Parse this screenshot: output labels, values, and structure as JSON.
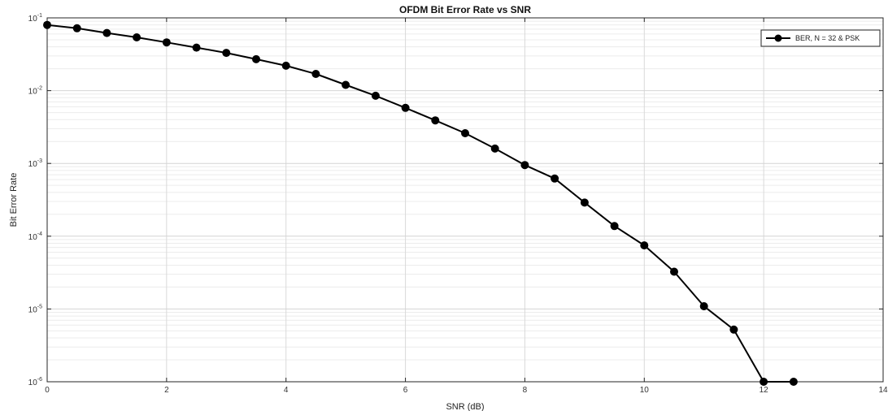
{
  "chart_data": {
    "type": "line",
    "title": "OFDM Bit Error Rate vs SNR",
    "xlabel": "SNR (dB)",
    "ylabel": "Bit Error Rate",
    "xlim": [
      0,
      14
    ],
    "ylim": [
      1e-06,
      0.1
    ],
    "yscale": "log",
    "grid": true,
    "legend_position": "top-right",
    "x_ticks": [
      0,
      2,
      4,
      6,
      8,
      10,
      12,
      14
    ],
    "x_tick_labels": [
      "0",
      "2",
      "4",
      "6",
      "8",
      "10",
      "12",
      "14"
    ],
    "y_ticks": [
      0.1,
      0.01,
      0.001,
      0.0001,
      1e-05,
      1e-06
    ],
    "y_tick_labels": [
      {
        "base": "10",
        "exp": "-1"
      },
      {
        "base": "10",
        "exp": "-2"
      },
      {
        "base": "10",
        "exp": "-3"
      },
      {
        "base": "10",
        "exp": "-4"
      },
      {
        "base": "10",
        "exp": "-5"
      },
      {
        "base": "10",
        "exp": "-6"
      }
    ],
    "series": [
      {
        "name": "BER, N = 32 & PSK",
        "color": "#000000",
        "marker": "circle",
        "x": [
          0,
          0.5,
          1,
          1.5,
          2,
          2.5,
          3,
          3.5,
          4,
          4.5,
          5,
          5.5,
          6,
          6.5,
          7,
          7.5,
          8,
          8.5,
          9,
          9.5,
          10,
          10.5,
          11,
          11.5,
          12,
          12.5
        ],
        "y": [
          0.08,
          0.072,
          0.062,
          0.054,
          0.046,
          0.039,
          0.033,
          0.027,
          0.022,
          0.017,
          0.012,
          0.0085,
          0.0058,
          0.0039,
          0.0026,
          0.0016,
          0.00095,
          0.00062,
          0.00029,
          0.000138,
          7.48e-05,
          3.25e-05,
          1.09e-05,
          5.2e-06,
          1e-06,
          1e-06
        ]
      }
    ]
  }
}
